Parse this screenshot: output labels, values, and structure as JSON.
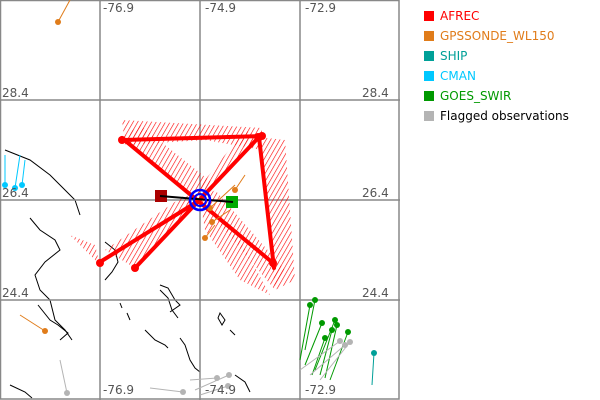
{
  "map": {
    "lon_labels": [
      "-76.9",
      "-74.9",
      "-72.9"
    ],
    "lat_labels": [
      "28.4",
      "26.4",
      "24.4"
    ],
    "grid_color": "#888888",
    "coastline_color": "#000000"
  },
  "legend": {
    "items": [
      {
        "label": "AFREC",
        "color": "#ff0000"
      },
      {
        "label": "GPSSONDE_WL150",
        "color": "#e07c1a"
      },
      {
        "label": "SHIP",
        "color": "#00a098"
      },
      {
        "label": "CMAN",
        "color": "#00c8ff"
      },
      {
        "label": "GOES_SWIR",
        "color": "#009900"
      },
      {
        "label": "Flagged observations",
        "color": "#b4b4b4",
        "text_color": "#000000"
      }
    ]
  }
}
